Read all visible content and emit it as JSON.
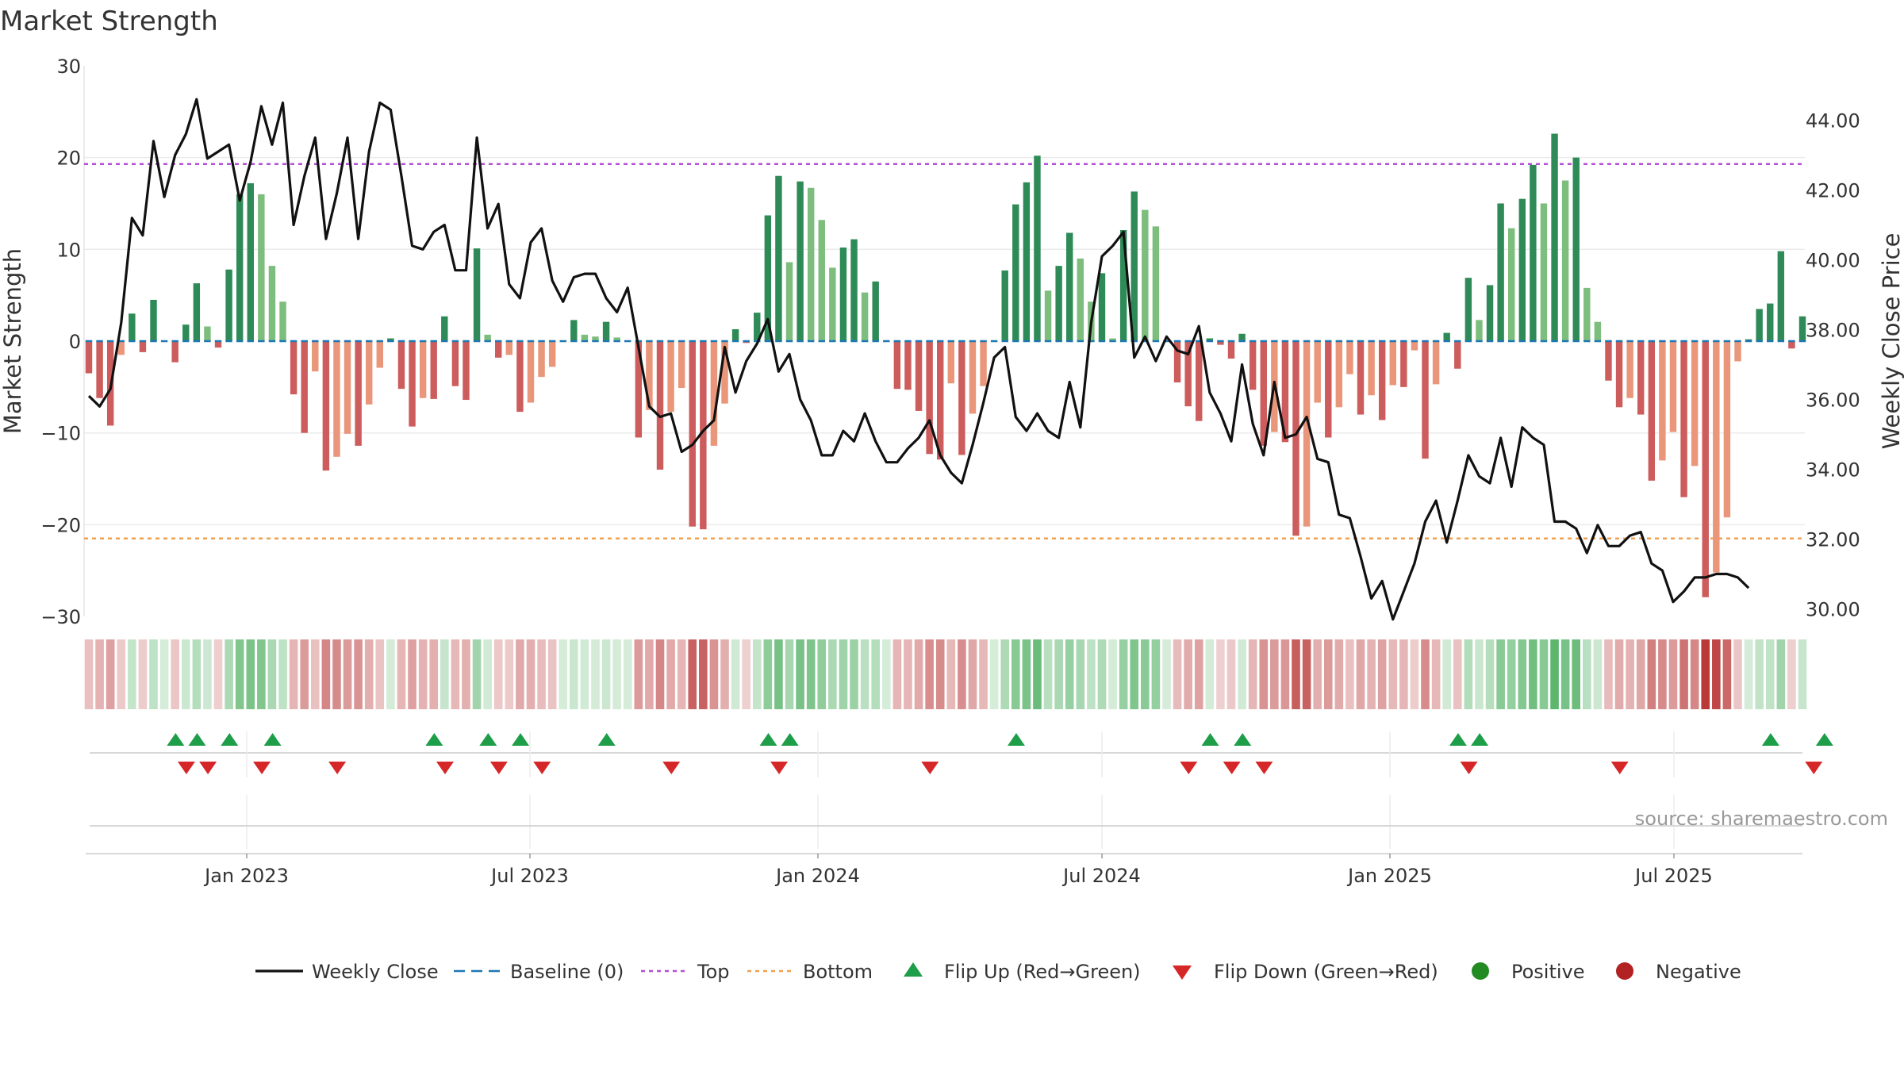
{
  "chart_data": {
    "type": "bar+line",
    "title": "Market Strength",
    "source_label": "source: sharemaestro.com",
    "y_left": {
      "label": "Market Strength",
      "range": [
        -30,
        30
      ],
      "ticks": [
        "30",
        "20",
        "10",
        "0",
        "−10",
        "−20",
        "−30"
      ]
    },
    "y_right": {
      "label": "Weekly Close Price",
      "range": [
        28.8,
        45.0
      ],
      "ticks": [
        "44.00",
        "42.00",
        "40.00",
        "38.00",
        "36.00",
        "34.00",
        "32.00",
        "30.00"
      ]
    },
    "x_tick_labels": [
      "Jan 2023",
      "Jul 2023",
      "Jan 2024",
      "Jul 2024",
      "Jan 2025",
      "Jul 2025"
    ],
    "top_level": 19.3,
    "bottom_level": -21.5,
    "strength": [
      -3.5,
      -6.2,
      -9.2,
      -1.5,
      3,
      -1.2,
      4.5,
      0,
      -2.3,
      1.8,
      6.3,
      1.6,
      -0.7,
      7.8,
      16,
      17.2,
      16,
      8.2,
      4.3,
      -5.8,
      -10,
      -3.3,
      -14.1,
      -12.6,
      -10.1,
      -11.4,
      -6.9,
      -2.9,
      0.3,
      -5.2,
      -9.3,
      -6.2,
      -6.3,
      2.7,
      -4.9,
      -6.4,
      10.1,
      0.7,
      -1.8,
      -1.5,
      -7.7,
      -6.7,
      -3.9,
      -2.8,
      0,
      2.3,
      0.7,
      0.5,
      2.1,
      0.4,
      0,
      -10.5,
      -7.5,
      -14,
      -7.7,
      -5.1,
      -20.2,
      -20.5,
      -11.4,
      -6.8,
      1.3,
      -0.2,
      3.1,
      13.7,
      18,
      8.6,
      17.4,
      16.7,
      13.2,
      8,
      10.2,
      11.1,
      5.3,
      6.5,
      0,
      -5.2,
      -5.3,
      -7.6,
      -12.3,
      -12.9,
      -4.6,
      -12.4,
      -7.9,
      -4.9,
      0,
      7.7,
      14.9,
      17.3,
      20.2,
      5.5,
      8.2,
      11.8,
      9,
      4.3,
      7.4,
      0.3,
      12.1,
      16.3,
      14.3,
      12.5,
      0,
      -4.5,
      -7.1,
      -8.7,
      0.3,
      -0.4,
      -1.9,
      0.8,
      -5.3,
      -11.4,
      -9.9,
      -11,
      -21.2,
      -20.2,
      -6.7,
      -10.5,
      -7.2,
      -3.6,
      -8,
      -5.9,
      -8.6,
      -4.8,
      -5,
      -1,
      -12.8,
      -4.7,
      0.9,
      -3,
      6.9,
      2.3,
      6.1,
      15,
      12.3,
      15.5,
      19.2,
      15,
      22.6,
      17.5,
      20,
      5.8,
      2.1,
      -4.3,
      -7.2,
      -6.2,
      -8,
      -15.2,
      -13,
      -9.9,
      -17,
      -13.6,
      -27.9,
      -25.2,
      -19.2,
      -2.2,
      0.2,
      3.5,
      4.1,
      9.8,
      -0.8,
      2.7
    ],
    "weekly_close": [
      36.1,
      35.8,
      36.3,
      38.2,
      41.2,
      40.7,
      43.4,
      41.8,
      43,
      43.6,
      44.6,
      42.9,
      43.1,
      43.3,
      41.7,
      42.8,
      44.4,
      43.3,
      44.5,
      41,
      42.4,
      43.5,
      40.6,
      41.9,
      43.5,
      40.6,
      43.1,
      44.5,
      44.3,
      42.4,
      40.4,
      40.3,
      40.8,
      41,
      39.7,
      39.7,
      43.5,
      40.9,
      41.6,
      39.3,
      38.9,
      40.5,
      40.9,
      39.4,
      38.8,
      39.5,
      39.6,
      39.6,
      38.9,
      38.5,
      39.2,
      37.5,
      35.8,
      35.5,
      35.6,
      34.5,
      34.7,
      35.1,
      35.4,
      37.5,
      36.2,
      37.1,
      37.6,
      38.3,
      36.8,
      37.3,
      36,
      35.4,
      34.4,
      34.4,
      35.1,
      34.8,
      35.6,
      34.8,
      34.2,
      34.2,
      34.6,
      34.9,
      35.4,
      34.4,
      33.9,
      33.6,
      34.7,
      35.9,
      37.2,
      37.5,
      35.5,
      35.1,
      35.6,
      35.1,
      34.9,
      36.5,
      35.2,
      38.2,
      40.1,
      40.4,
      40.8,
      37.2,
      37.8,
      37.1,
      37.8,
      37.4,
      37.3,
      38.1,
      36.2,
      35.6,
      34.8,
      37,
      35.3,
      34.4,
      36.5,
      34.9,
      35,
      35.5,
      34.3,
      34.2,
      32.7,
      32.6,
      31.5,
      30.3,
      30.8,
      29.7,
      30.5,
      31.3,
      32.5,
      33.1,
      31.9,
      33.1,
      34.4,
      33.8,
      33.6,
      34.9,
      33.5,
      35.2,
      34.9,
      34.7,
      32.5,
      32.5,
      32.3,
      31.6,
      32.4,
      31.8,
      31.8,
      32.1,
      32.2,
      31.3,
      31.1,
      30.2,
      30.5,
      30.9,
      30.9,
      31,
      31,
      30.9,
      30.6
    ],
    "flip_up_weeks": [
      4,
      6,
      9,
      13,
      28,
      33,
      36,
      44,
      59,
      61,
      82,
      100,
      103,
      123,
      125,
      152,
      157
    ],
    "flip_down_weeks": [
      5,
      7,
      12,
      19,
      29,
      34,
      38,
      50,
      60,
      74,
      98,
      102,
      105,
      124,
      138,
      156
    ],
    "legend": [
      {
        "key": "weekly_close",
        "label": "Weekly Close"
      },
      {
        "key": "baseline",
        "label": "Baseline (0)"
      },
      {
        "key": "top",
        "label": "Top"
      },
      {
        "key": "bottom",
        "label": "Bottom"
      },
      {
        "key": "flip_up",
        "label": "Flip Up (Red→Green)"
      },
      {
        "key": "flip_down",
        "label": "Flip Down (Green→Red)"
      },
      {
        "key": "positive",
        "label": "Positive"
      },
      {
        "key": "negative",
        "label": "Negative"
      }
    ],
    "colors": {
      "close_line": "#111111",
      "baseline": "#1f77b4",
      "top": "#b44fd6",
      "bottom": "#f0a050",
      "flip_up": "#1e9e48",
      "flip_down": "#d62728",
      "positive": "#228b22",
      "negative": "#b22222",
      "pos_dark": "#2e8b57",
      "pos_light": "#7dbd7d",
      "neg_dark": "#cd5c5c",
      "neg_light": "#e9967a"
    }
  }
}
